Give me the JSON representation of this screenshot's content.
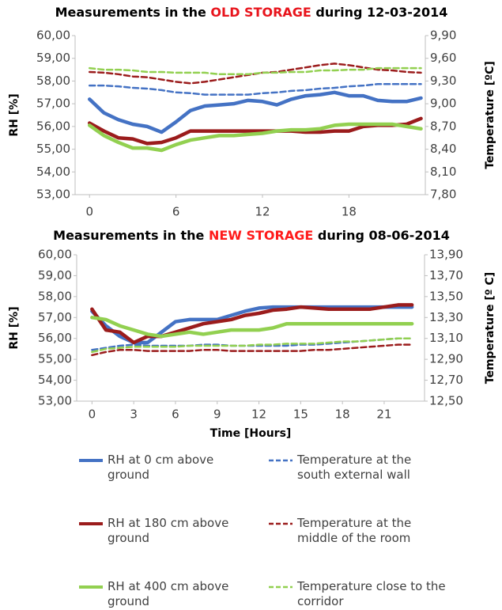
{
  "chart_data": [
    {
      "type": "line",
      "title": [
        "Measurements in the ",
        "OLD STORAGE",
        " during 12-03-2014"
      ],
      "title_colors": [
        "#000000",
        "#e8141c",
        "#000000"
      ],
      "y_label": "RH [%]",
      "y2_label": "Temperature [ºC]",
      "x": [
        0,
        1,
        2,
        3,
        4,
        5,
        6,
        7,
        8,
        9,
        10,
        11,
        12,
        13,
        14,
        15,
        16,
        17,
        18,
        19,
        20,
        21,
        22,
        23
      ],
      "xlim": [
        -1,
        23.3
      ],
      "xticks": [
        0,
        6,
        12,
        18
      ],
      "ylim": [
        53,
        60
      ],
      "yticks": [
        {
          "value": 53,
          "label": "53,00"
        },
        {
          "value": 54,
          "label": "54,00"
        },
        {
          "value": 55,
          "label": "55,00"
        },
        {
          "value": 56,
          "label": "56,00"
        },
        {
          "value": 57,
          "label": "57,00"
        },
        {
          "value": 58,
          "label": "58,00"
        },
        {
          "value": 59,
          "label": "59,00"
        },
        {
          "value": 60,
          "label": "60,00"
        }
      ],
      "y2lim": [
        7.8,
        9.9
      ],
      "y2ticks": [
        {
          "value": 7.8,
          "label": "7,80"
        },
        {
          "value": 8.1,
          "label": "8,10"
        },
        {
          "value": 8.4,
          "label": "8,40"
        },
        {
          "value": 8.7,
          "label": "8,70"
        },
        {
          "value": 9.0,
          "label": "9,00"
        },
        {
          "value": 9.3,
          "label": "9,30"
        },
        {
          "value": 9.6,
          "label": "9,60"
        },
        {
          "value": 9.9,
          "label": "9,90"
        }
      ],
      "grid": false,
      "series": [
        {
          "name": "RH  at 0 cm above ground",
          "color": "#4472c4",
          "style": "solid",
          "values": [
            57.2,
            56.6,
            56.3,
            56.1,
            56.0,
            55.75,
            56.2,
            56.7,
            56.9,
            56.95,
            57.0,
            57.15,
            57.1,
            56.95,
            57.2,
            57.35,
            57.4,
            57.5,
            57.35,
            57.35,
            57.15,
            57.1,
            57.1,
            57.25
          ]
        },
        {
          "name": "Temperature at the south external wall",
          "color": "#4472c4",
          "style": "dashed",
          "axis": "y2",
          "values": [
            9.24,
            9.24,
            9.23,
            9.21,
            9.2,
            9.18,
            9.15,
            9.14,
            9.12,
            9.12,
            9.12,
            9.12,
            9.14,
            9.15,
            9.17,
            9.18,
            9.2,
            9.21,
            9.23,
            9.24,
            9.26,
            9.26,
            9.26,
            9.26
          ]
        },
        {
          "name": "RH  at 180 cm above ground",
          "color": "#9b1c1c",
          "style": "solid",
          "values": [
            56.15,
            55.8,
            55.5,
            55.45,
            55.25,
            55.3,
            55.5,
            55.8,
            55.8,
            55.8,
            55.8,
            55.8,
            55.8,
            55.8,
            55.8,
            55.75,
            55.75,
            55.8,
            55.8,
            56.0,
            56.05,
            56.05,
            56.1,
            56.35
          ]
        },
        {
          "name": "Temperature at the middle of the room",
          "color": "#9b1c1c",
          "style": "dashed",
          "axis": "y2",
          "values": [
            9.42,
            9.41,
            9.39,
            9.36,
            9.35,
            9.32,
            9.29,
            9.27,
            9.29,
            9.32,
            9.35,
            9.38,
            9.41,
            9.42,
            9.45,
            9.48,
            9.51,
            9.53,
            9.51,
            9.48,
            9.45,
            9.44,
            9.42,
            9.41
          ]
        },
        {
          "name": "RH  at 400 cm above ground",
          "color": "#92d050",
          "style": "solid",
          "values": [
            56.05,
            55.6,
            55.3,
            55.05,
            55.05,
            54.95,
            55.2,
            55.4,
            55.5,
            55.6,
            55.6,
            55.65,
            55.7,
            55.8,
            55.85,
            55.85,
            55.9,
            56.05,
            56.1,
            56.1,
            56.1,
            56.1,
            56.0,
            55.9
          ]
        },
        {
          "name": "Temperature close to the corridor",
          "color": "#92d050",
          "style": "dashed",
          "axis": "y2",
          "values": [
            9.47,
            9.45,
            9.45,
            9.44,
            9.42,
            9.42,
            9.41,
            9.41,
            9.41,
            9.39,
            9.39,
            9.39,
            9.41,
            9.41,
            9.42,
            9.42,
            9.44,
            9.44,
            9.45,
            9.45,
            9.47,
            9.47,
            9.47,
            9.47
          ]
        }
      ]
    },
    {
      "type": "line",
      "title": [
        "Measurements in the ",
        "NEW STORAGE",
        " during 08-06-2014"
      ],
      "title_colors": [
        "#000000",
        "#ff1a1a",
        "#000000"
      ],
      "y_label": "RH [%]",
      "y2_label": "Temperature [º C]",
      "x_label": "Time [Hours]",
      "x": [
        0,
        1,
        2,
        3,
        4,
        5,
        6,
        7,
        8,
        9,
        10,
        11,
        12,
        13,
        14,
        15,
        16,
        17,
        18,
        19,
        20,
        21,
        22,
        23
      ],
      "xlim": [
        -1.1,
        23.9
      ],
      "xticks": [
        0,
        3,
        6,
        9,
        12,
        15,
        18,
        21
      ],
      "ylim": [
        53,
        60
      ],
      "yticks": [
        {
          "value": 53,
          "label": "53,00"
        },
        {
          "value": 54,
          "label": "54,00"
        },
        {
          "value": 55,
          "label": "55,00"
        },
        {
          "value": 56,
          "label": "56,00"
        },
        {
          "value": 57,
          "label": "57,00"
        },
        {
          "value": 58,
          "label": "58,00"
        },
        {
          "value": 59,
          "label": "59,00"
        },
        {
          "value": 60,
          "label": "60,00"
        }
      ],
      "y2lim": [
        12.5,
        13.9
      ],
      "y2ticks": [
        {
          "value": 12.5,
          "label": "12,50"
        },
        {
          "value": 12.7,
          "label": "12,70"
        },
        {
          "value": 12.9,
          "label": "12,90"
        },
        {
          "value": 13.1,
          "label": "13,10"
        },
        {
          "value": 13.3,
          "label": "13,30"
        },
        {
          "value": 13.5,
          "label": "13,50"
        },
        {
          "value": 13.7,
          "label": "13,70"
        },
        {
          "value": 13.9,
          "label": "13,90"
        }
      ],
      "grid": false,
      "series": [
        {
          "color": "#4472c4",
          "style": "solid",
          "values": [
            57.3,
            56.6,
            56.1,
            55.8,
            55.8,
            56.3,
            56.8,
            56.9,
            56.9,
            56.9,
            57.1,
            57.3,
            57.45,
            57.5,
            57.5,
            57.5,
            57.5,
            57.5,
            57.5,
            57.5,
            57.5,
            57.5,
            57.5,
            57.5
          ]
        },
        {
          "color": "#4472c4",
          "style": "dashed",
          "axis": "y2",
          "values": [
            12.99,
            13.01,
            13.03,
            13.04,
            13.03,
            13.03,
            13.03,
            13.03,
            13.04,
            13.04,
            13.03,
            13.03,
            13.03,
            13.03,
            13.03,
            13.04,
            13.04,
            13.05,
            13.06,
            13.07,
            13.08,
            13.09,
            13.1,
            13.1
          ]
        },
        {
          "color": "#9b1c1c",
          "style": "solid",
          "values": [
            57.4,
            56.4,
            56.3,
            55.8,
            56.1,
            56.1,
            56.3,
            56.5,
            56.7,
            56.8,
            56.9,
            57.1,
            57.2,
            57.35,
            57.4,
            57.5,
            57.45,
            57.4,
            57.4,
            57.4,
            57.4,
            57.5,
            57.6,
            57.6
          ]
        },
        {
          "color": "#9b1c1c",
          "style": "dashed",
          "axis": "y2",
          "values": [
            12.94,
            12.97,
            12.99,
            12.99,
            12.98,
            12.98,
            12.98,
            12.98,
            12.99,
            12.99,
            12.98,
            12.98,
            12.98,
            12.98,
            12.98,
            12.98,
            12.99,
            12.99,
            13.0,
            13.01,
            13.02,
            13.03,
            13.04,
            13.04
          ]
        },
        {
          "color": "#92d050",
          "style": "solid",
          "values": [
            57.0,
            56.9,
            56.6,
            56.4,
            56.2,
            56.1,
            56.2,
            56.3,
            56.2,
            56.3,
            56.4,
            56.4,
            56.4,
            56.5,
            56.7,
            56.7,
            56.7,
            56.7,
            56.7,
            56.7,
            56.7,
            56.7,
            56.7,
            56.7
          ]
        },
        {
          "color": "#92d050",
          "style": "dashed",
          "axis": "y2",
          "values": [
            12.97,
            13.0,
            13.01,
            13.02,
            13.02,
            13.02,
            13.02,
            13.03,
            13.03,
            13.03,
            13.03,
            13.03,
            13.04,
            13.04,
            13.05,
            13.05,
            13.05,
            13.06,
            13.07,
            13.07,
            13.08,
            13.09,
            13.1,
            13.1
          ]
        }
      ]
    }
  ]
}
